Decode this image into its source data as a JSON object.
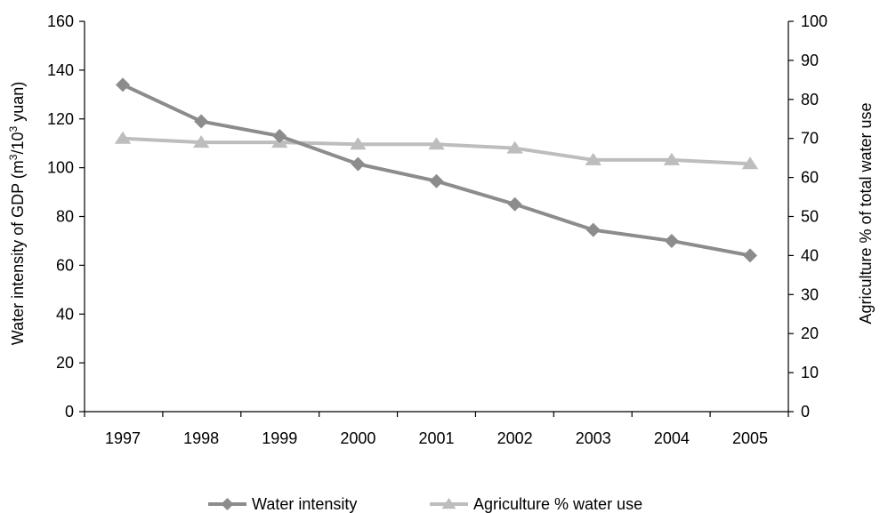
{
  "chart_data": {
    "type": "line",
    "title": "",
    "x": [
      "1997",
      "1998",
      "1999",
      "2000",
      "2001",
      "2002",
      "2003",
      "2004",
      "2005"
    ],
    "ylabel_left": {
      "prefix": "Water intensity of GDP (m",
      "sup1": "3",
      "mid": "/10",
      "sup2": "3",
      "suffix": " yuan)"
    },
    "ylabel_right": "Agriculture % of total water use",
    "y_left_range": [
      0,
      160
    ],
    "y_left_ticks": [
      "0",
      "20",
      "40",
      "60",
      "80",
      "100",
      "120",
      "140",
      "160"
    ],
    "y_right_range": [
      0,
      100
    ],
    "y_right_ticks": [
      "0",
      "10",
      "20",
      "30",
      "40",
      "50",
      "60",
      "70",
      "80",
      "90",
      "100"
    ],
    "grid": false,
    "legend_position": "bottom",
    "series": [
      {
        "name": "Water intensity",
        "axis": "left",
        "marker": "diamond",
        "color": "#8c8c8c",
        "values": [
          134,
          119,
          113,
          101.5,
          94.5,
          85,
          74.5,
          70,
          64
        ]
      },
      {
        "name": "Agriculture % water use",
        "axis": "right",
        "marker": "triangle",
        "color": "#bdbdbd",
        "values": [
          70,
          69,
          69,
          68.5,
          68.5,
          67.5,
          64.5,
          64.5,
          63.5
        ]
      }
    ]
  }
}
